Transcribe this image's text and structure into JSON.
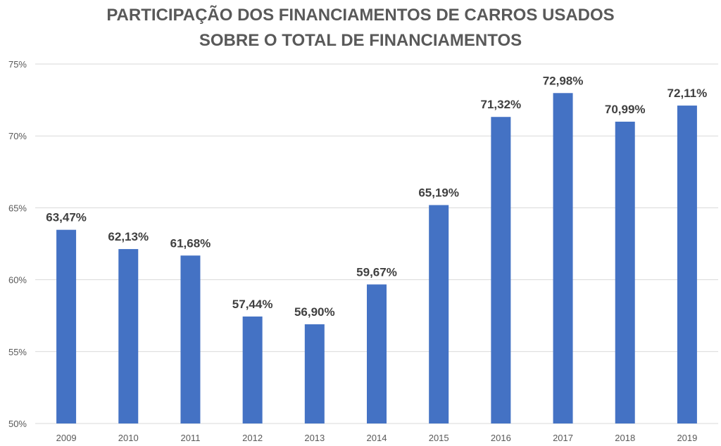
{
  "chart_data": {
    "type": "bar",
    "title_line1": "PARTICIPAÇÃO DOS FINANCIAMENTOS DE CARROS USADOS",
    "title_line2": "SOBRE O TOTAL DE FINANCIAMENTOS",
    "categories": [
      "2009",
      "2010",
      "2011",
      "2012",
      "2013",
      "2014",
      "2015",
      "2016",
      "2017",
      "2018",
      "2019"
    ],
    "values": [
      63.47,
      62.13,
      61.68,
      57.44,
      56.9,
      59.67,
      65.19,
      71.32,
      72.98,
      70.99,
      72.11
    ],
    "data_labels": [
      "63,47%",
      "62,13%",
      "61,68%",
      "57,44%",
      "56,90%",
      "59,67%",
      "65,19%",
      "71,32%",
      "72,98%",
      "70,99%",
      "72,11%"
    ],
    "yticks": [
      50,
      55,
      60,
      65,
      70,
      75
    ],
    "ytick_labels": [
      "50%",
      "55%",
      "60%",
      "65%",
      "70%",
      "75%"
    ],
    "ylim": [
      50,
      75
    ],
    "grid": true,
    "bar_color": "#4472C4",
    "grid_color": "#D9D9D9"
  }
}
